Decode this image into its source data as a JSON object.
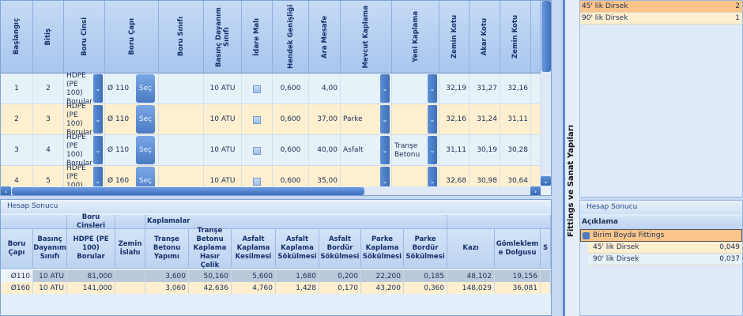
{
  "grid": {
    "columns": [
      "Başlangıç",
      "Bitiş",
      "Boru Cinsi",
      "Boru Çapı",
      "Boru Sınıfı",
      "Basınç Dayanım Sınıfı",
      "İdare Malı",
      "Hendek Genişliği",
      "Ara Mesafe",
      "Mevcut Kaplama",
      "Yeni Kaplama",
      "Zemin Kotu",
      "Akar Kotu",
      "Zemin Kotu"
    ],
    "select_label": "Seç",
    "rows": [
      {
        "baslangic": "1",
        "bitis": "2",
        "boru_cinsi": "HDPE (PE 100) Borular",
        "boru_capi": "Ø 110",
        "boru_sinifi": "",
        "basinc": "10 ATU",
        "idare_mali": false,
        "hendek": "0,600",
        "ara_mesafe": "4,00",
        "mevcut": "",
        "yeni": "",
        "zemin_kotu": "32,19",
        "akar_kotu": "31,27",
        "zemin_kotu2": "32,16"
      },
      {
        "baslangic": "2",
        "bitis": "3",
        "boru_cinsi": "HDPE (PE 100) Borular",
        "boru_capi": "Ø 110",
        "boru_sinifi": "",
        "basinc": "10 ATU",
        "idare_mali": false,
        "hendek": "0,600",
        "ara_mesafe": "37,00",
        "mevcut": "Parke",
        "yeni": "",
        "zemin_kotu": "32,16",
        "akar_kotu": "31,24",
        "zemin_kotu2": "31,11"
      },
      {
        "baslangic": "3",
        "bitis": "4",
        "boru_cinsi": "HDPE (PE 100) Borular",
        "boru_capi": "Ø 110",
        "boru_sinifi": "",
        "basinc": "10 ATU",
        "idare_mali": false,
        "hendek": "0,600",
        "ara_mesafe": "40,00",
        "mevcut": "Asfalt",
        "yeni": "Tranşe Betonu",
        "zemin_kotu": "31,11",
        "akar_kotu": "30,19",
        "zemin_kotu2": "30,28"
      },
      {
        "baslangic": "4",
        "bitis": "5",
        "boru_cinsi": "HDPE (PE 100) Borular",
        "boru_capi": "Ø 160",
        "boru_sinifi": "",
        "basinc": "10 ATU",
        "idare_mali": false,
        "hendek": "0,600",
        "ara_mesafe": "35,00",
        "mevcut": "",
        "yeni": "",
        "zemin_kotu": "32,68",
        "akar_kotu": "30,98",
        "zemin_kotu2": "30,64"
      }
    ]
  },
  "result": {
    "title": "Hesap Sonucu",
    "bands": [
      "",
      "Boru Cinsleri",
      "",
      "Kaplamalar",
      ""
    ],
    "columns": [
      "Boru Çapı",
      "Basınç Dayanım Sınıfı",
      "HDPE (PE 100) Borular",
      "Zemin İslahı",
      "Tranşe Betonu Yapımı",
      "Tranşe Betonu Kaplama Hasır Çelik",
      "Asfalt Kaplama Kesilmesi",
      "Asfalt Kaplama Sökülmesi",
      "Asfalt Bordür Sökülmesi",
      "Parke Kaplama Sökülmesi",
      "Parke Bordür Sökülmesi",
      "Kazı",
      "Gömleklem e Dolgusu",
      "S"
    ],
    "rows": [
      [
        "Ø110",
        "10 ATU",
        "81,000",
        "",
        "3,600",
        "50,160",
        "5,600",
        "1,680",
        "0,200",
        "22,200",
        "0,185",
        "48,102",
        "19,156",
        ""
      ],
      [
        "Ø160",
        "10 ATU",
        "141,000",
        "",
        "3,060",
        "42,636",
        "4,760",
        "1,428",
        "0,170",
        "43,200",
        "0,360",
        "148,029",
        "36,081",
        ""
      ]
    ]
  },
  "side": {
    "label": "Fittings ve Sanat Yapıları",
    "items": [
      {
        "name": "45' lik Dirsek",
        "qty": "2"
      },
      {
        "name": "90' lik Dirsek",
        "qty": "1"
      }
    ],
    "result_title": "Hesap Sonucu",
    "result_header": "Açıklama",
    "group": "Birim Boyda Fittings",
    "result_rows": [
      {
        "name": "45' lik Dirsek",
        "value": "0,049"
      },
      {
        "name": "90' lik Dirsek",
        "value": "0,037"
      }
    ]
  }
}
